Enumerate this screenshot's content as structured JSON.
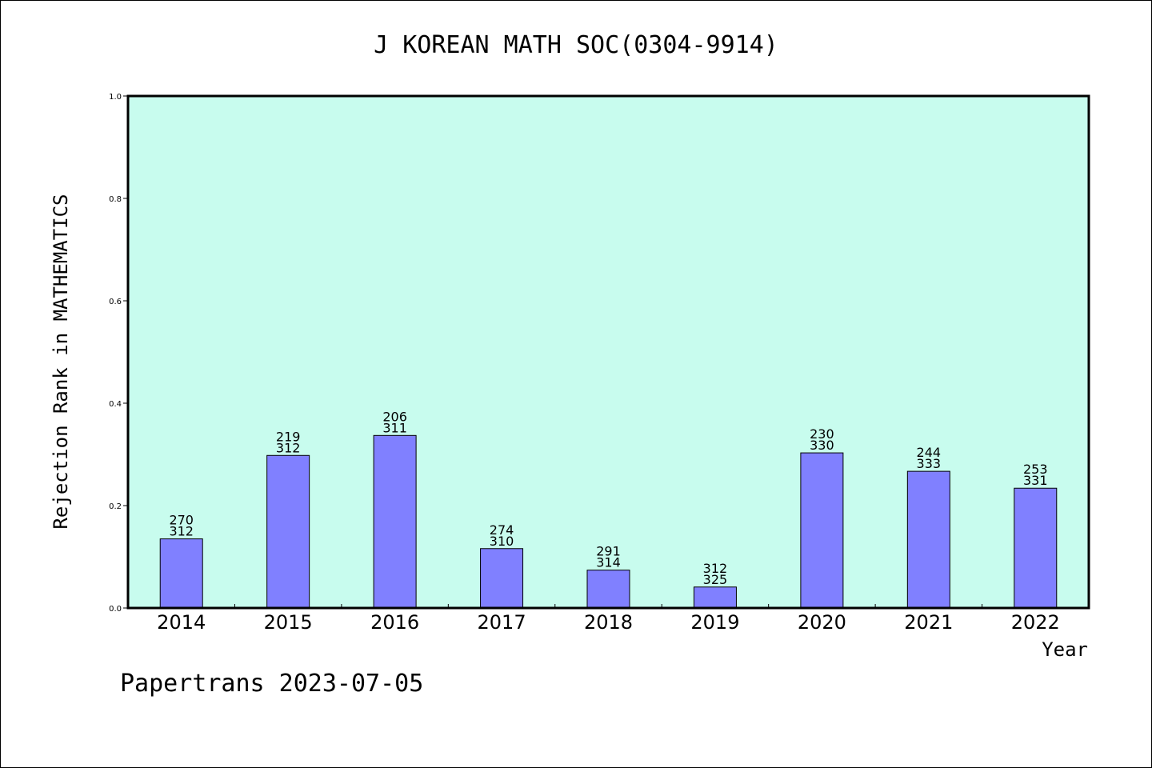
{
  "chart_data": {
    "type": "bar",
    "title": "J KOREAN MATH SOC(0304-9914)",
    "xlabel": "Year",
    "ylabel": "Rejection Rank in MATHEMATICS",
    "ylim": [
      0,
      1.0
    ],
    "yticks": [
      "0.0",
      "0.2",
      "0.4",
      "0.6",
      "0.8",
      "1.0"
    ],
    "grid": false,
    "categories": [
      "2014",
      "2015",
      "2016",
      "2017",
      "2018",
      "2019",
      "2020",
      "2021",
      "2022"
    ],
    "values": [
      0.135,
      0.298,
      0.337,
      0.116,
      0.074,
      0.041,
      0.303,
      0.267,
      0.234
    ],
    "labels_top": [
      "270",
      "219",
      "206",
      "274",
      "291",
      "312",
      "230",
      "244",
      "253"
    ],
    "labels_bottom": [
      "312",
      "312",
      "311",
      "310",
      "314",
      "325",
      "330",
      "333",
      "331"
    ],
    "bar_color": "#8080ff",
    "plot_background": "#c8fcee"
  },
  "footer": "Papertrans 2023-07-05"
}
